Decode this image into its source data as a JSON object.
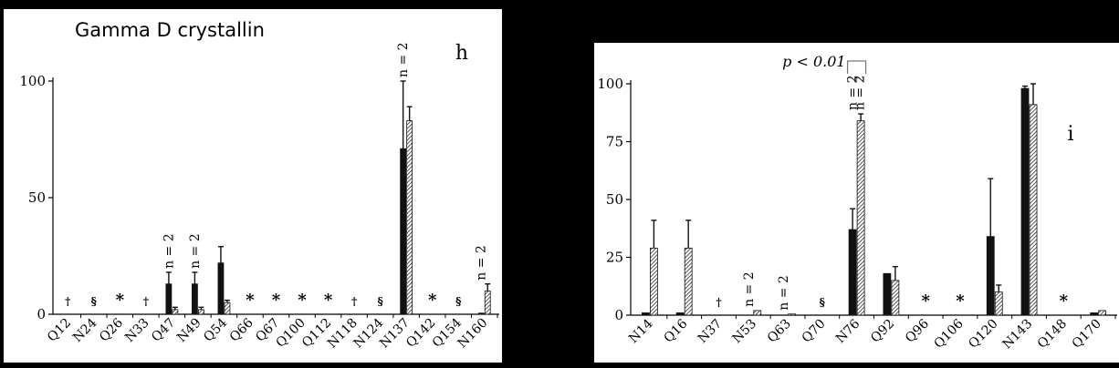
{
  "chart_data": [
    {
      "type": "bar",
      "panel_letter": "h",
      "title": "Gamma D crystallin",
      "xlabel": "",
      "ylabel": "",
      "ylim": [
        0,
        100
      ],
      "yticks": [
        "100",
        "50",
        "0"
      ],
      "categories": [
        "Q12",
        "N24",
        "Q26",
        "N33",
        "Q47",
        "N49",
        "Q54",
        "Q66",
        "Q67",
        "Q100",
        "Q112",
        "N118",
        "N124",
        "N137",
        "Q142",
        "Q154",
        "N160"
      ],
      "series": [
        {
          "style": "solid",
          "values": [
            0,
            0,
            0,
            0,
            13,
            13,
            22,
            0,
            0,
            0,
            0,
            0,
            0,
            71,
            0,
            0,
            0.5
          ],
          "errors": [
            0,
            0,
            0,
            0,
            5,
            5,
            7,
            0,
            0,
            0,
            0,
            0,
            0,
            29,
            0,
            0,
            0
          ]
        },
        {
          "style": "hatched",
          "values": [
            0,
            0,
            0,
            0,
            2,
            2,
            5,
            0,
            0,
            0,
            0,
            0,
            0,
            83,
            0,
            0,
            10
          ],
          "errors": [
            0,
            0,
            0,
            0,
            1,
            1,
            1,
            0,
            0,
            0,
            0,
            0,
            0,
            6,
            0,
            0,
            3
          ]
        }
      ],
      "symbols": [
        "†",
        "§",
        "*",
        "†",
        "",
        "",
        "",
        "*",
        "*",
        "*",
        "*",
        "†",
        "§",
        "",
        "*",
        "§",
        ""
      ],
      "annotations": [
        {
          "category": "Q47",
          "text": "n = 2"
        },
        {
          "category": "N49",
          "text": "n = 2"
        },
        {
          "category": "N137",
          "text": "n = 2"
        },
        {
          "category": "N160",
          "text": "n = 2"
        }
      ]
    },
    {
      "type": "bar",
      "panel_letter": "i",
      "title": "",
      "xlabel": "",
      "ylabel": "",
      "ylim": [
        0,
        100
      ],
      "yticks": [
        "100",
        "75",
        "50",
        "25",
        "0"
      ],
      "categories": [
        "N14",
        "Q16",
        "N37",
        "N53",
        "Q63",
        "Q70",
        "N76",
        "Q92",
        "Q96",
        "Q106",
        "Q120",
        "N143",
        "Q148",
        "Q170"
      ],
      "series": [
        {
          "style": "solid",
          "values": [
            1,
            1,
            0,
            0,
            0,
            0,
            37,
            18,
            0,
            0,
            34,
            98,
            0,
            1
          ],
          "errors": [
            0,
            0,
            0,
            0,
            0,
            0,
            9,
            0,
            0,
            0,
            25,
            1,
            0,
            0
          ]
        },
        {
          "style": "hatched",
          "values": [
            29,
            29,
            0,
            2,
            0.5,
            0,
            84,
            15,
            0,
            0,
            10,
            91,
            0,
            2
          ],
          "errors": [
            12,
            12,
            0,
            0,
            0,
            0,
            3,
            6,
            0,
            0,
            3,
            9,
            0,
            0
          ]
        }
      ],
      "symbols": [
        "",
        "",
        "†",
        "",
        "",
        "§",
        "",
        "",
        "*",
        "*",
        "",
        "",
        "*",
        ""
      ],
      "annotations": [
        {
          "category": "N53",
          "text": "n = 2"
        },
        {
          "category": "Q63",
          "text": "n = 2"
        },
        {
          "category": "N76",
          "text": "n = 2"
        },
        {
          "category": "N76",
          "text": "n = 2"
        }
      ],
      "significance": {
        "text": "p < 0.01",
        "from": "N76",
        "to": "N76"
      }
    }
  ]
}
